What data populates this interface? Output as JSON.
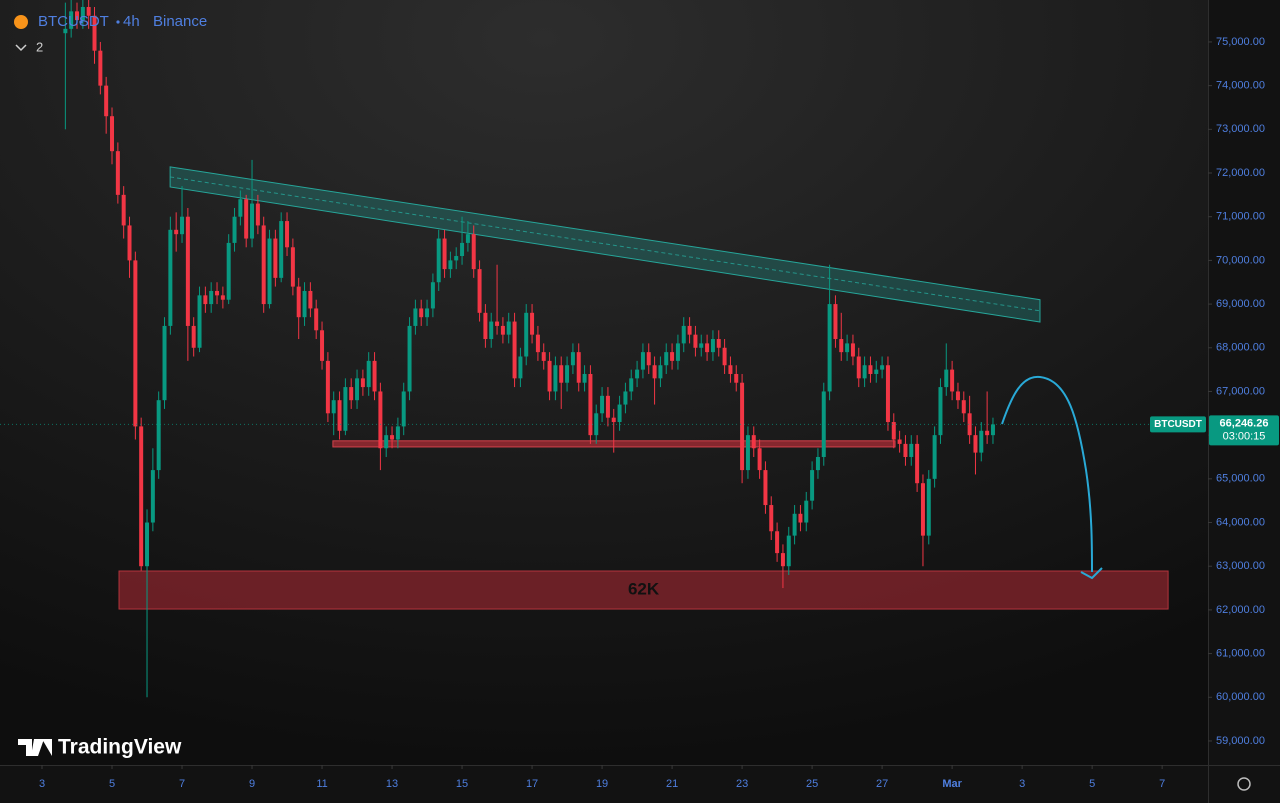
{
  "chart_data": {
    "type": "candlestick",
    "symbol": "BTCUSDT",
    "interval": "4h",
    "exchange": "Binance",
    "legend_count": 2,
    "watermark": "TradingView",
    "up_color": "#089981",
    "down_color": "#f23645",
    "xlim": [
      1.8,
      36.31
    ],
    "xticks": [
      3,
      5,
      7,
      9,
      11,
      13,
      15,
      17,
      19,
      21,
      23,
      25,
      27,
      {
        "value": 29,
        "label": "Mar"
      },
      {
        "value": 31,
        "label": "3"
      },
      {
        "value": 33,
        "label": "5"
      },
      {
        "value": 35,
        "label": "7"
      }
    ],
    "ylim": [
      58450,
      75960
    ],
    "yticks": [
      {
        "value": 59000,
        "label": "59,000.00"
      },
      {
        "value": 60000,
        "label": "60,000.00"
      },
      {
        "value": 61000,
        "label": "61,000.00"
      },
      {
        "value": 62000,
        "label": "62,000.00"
      },
      {
        "value": 63000,
        "label": "63,000.00"
      },
      {
        "value": 64000,
        "label": "64,000.00"
      },
      {
        "value": 65000,
        "label": "65,000.00"
      },
      {
        "value": 66000,
        "label": "66,000.00"
      },
      {
        "value": 67000,
        "label": "67,000.00"
      },
      {
        "value": 68000,
        "label": "68,000.00"
      },
      {
        "value": 69000,
        "label": "69,000.00"
      },
      {
        "value": 70000,
        "label": "70,000.00"
      },
      {
        "value": 71000,
        "label": "71,000.00"
      },
      {
        "value": 72000,
        "label": "72,000.00"
      },
      {
        "value": 73000,
        "label": "73,000.00"
      },
      {
        "value": 74000,
        "label": "74,000.00"
      },
      {
        "value": 75000,
        "label": "75,000.00"
      }
    ],
    "x": [
      3.667,
      3.833,
      4,
      4.167,
      4.333,
      4.5,
      4.667,
      4.833,
      5,
      5.167,
      5.333,
      5.5,
      5.667,
      5.833,
      6,
      6.167,
      6.333,
      6.5,
      6.667,
      6.833,
      7,
      7.167,
      7.333,
      7.5,
      7.667,
      7.833,
      8,
      8.167,
      8.333,
      8.5,
      8.667,
      8.833,
      9,
      9.167,
      9.333,
      9.5,
      9.667,
      9.833,
      10,
      10.167,
      10.333,
      10.5,
      10.667,
      10.833,
      11,
      11.167,
      11.333,
      11.5,
      11.667,
      11.833,
      12,
      12.167,
      12.333,
      12.5,
      12.667,
      12.833,
      13,
      13.167,
      13.333,
      13.5,
      13.667,
      13.833,
      14,
      14.167,
      14.333,
      14.5,
      14.667,
      14.833,
      15,
      15.167,
      15.333,
      15.5,
      15.667,
      15.833,
      16,
      16.167,
      16.333,
      16.5,
      16.667,
      16.833,
      17,
      17.167,
      17.333,
      17.5,
      17.667,
      17.833,
      18,
      18.167,
      18.333,
      18.5,
      18.667,
      18.833,
      19,
      19.167,
      19.333,
      19.5,
      19.667,
      19.833,
      20,
      20.167,
      20.333,
      20.5,
      20.667,
      20.833,
      21,
      21.167,
      21.333,
      21.5,
      21.667,
      21.833,
      22,
      22.167,
      22.333,
      22.5,
      22.667,
      22.833,
      23,
      23.167,
      23.333,
      23.5,
      23.667,
      23.833,
      24,
      24.167,
      24.333,
      24.5,
      24.667,
      24.833,
      25,
      25.167,
      25.333,
      25.5,
      25.667,
      25.833,
      26,
      26.167,
      26.333,
      26.5,
      26.667,
      26.833,
      27,
      27.167,
      27.333,
      27.5,
      27.667,
      27.833,
      28,
      28.167,
      28.333,
      28.5,
      28.667,
      28.833,
      29,
      29.167,
      29.333,
      29.5,
      29.667,
      29.833,
      30,
      30.167
    ],
    "open": [
      75200,
      75300,
      75700,
      75500,
      75800,
      75600,
      74800,
      74000,
      73300,
      72500,
      71500,
      70800,
      70000,
      66200,
      63000,
      64000,
      65200,
      66800,
      68500,
      70700,
      70600,
      71000,
      68500,
      68000,
      69200,
      69000,
      69300,
      69200,
      69100,
      70400,
      71000,
      71400,
      70500,
      71300,
      70800,
      69000,
      70500,
      69600,
      70900,
      70300,
      69400,
      68700,
      69300,
      68900,
      68400,
      67700,
      66500,
      66800,
      66100,
      67100,
      66800,
      67300,
      67100,
      67700,
      67000,
      65700,
      66000,
      65900,
      66200,
      67000,
      68500,
      68900,
      68700,
      68900,
      69500,
      70500,
      69800,
      70000,
      70100,
      70400,
      70600,
      69800,
      68800,
      68200,
      68600,
      68500,
      68300,
      68600,
      67300,
      67800,
      68800,
      68300,
      67900,
      67700,
      67000,
      67600,
      67200,
      67600,
      67900,
      67200,
      67400,
      66000,
      66500,
      66900,
      66400,
      66300,
      66700,
      67000,
      67300,
      67500,
      67900,
      67600,
      67300,
      67600,
      67900,
      67700,
      68100,
      68500,
      68300,
      68000,
      68100,
      67900,
      68200,
      68000,
      67600,
      67400,
      67200,
      65200,
      66000,
      65700,
      65200,
      64400,
      63800,
      63300,
      63000,
      63700,
      64200,
      64000,
      64500,
      65200,
      65500,
      67000,
      69000,
      68200,
      67900,
      68100,
      67800,
      67300,
      67600,
      67400,
      67500,
      67600,
      66300,
      65900,
      65800,
      65500,
      65800,
      64900,
      63700,
      65000,
      66000,
      67100,
      67500,
      67000,
      66800,
      66500,
      66000,
      65600,
      66100,
      66000
    ],
    "high": [
      75900,
      76000,
      75900,
      76000,
      76000,
      75800,
      75000,
      74200,
      73500,
      72700,
      71700,
      71000,
      70200,
      66400,
      64300,
      65700,
      67000,
      68700,
      71000,
      71100,
      71700,
      71200,
      68700,
      69400,
      69400,
      69500,
      69500,
      69400,
      70600,
      71200,
      71600,
      71500,
      72300,
      71500,
      71000,
      70700,
      70700,
      71100,
      71100,
      70500,
      69600,
      69500,
      69500,
      69100,
      68600,
      67900,
      67000,
      67000,
      67300,
      67300,
      67500,
      67500,
      67900,
      67900,
      67200,
      66200,
      66200,
      66400,
      67200,
      68700,
      69100,
      69100,
      69100,
      69700,
      70700,
      70700,
      70200,
      70300,
      71000,
      70900,
      70800,
      70000,
      69000,
      68800,
      69900,
      68700,
      68800,
      68800,
      68000,
      69000,
      69000,
      68500,
      68100,
      67900,
      67800,
      67800,
      67800,
      68100,
      68100,
      67600,
      67600,
      66700,
      67100,
      67100,
      66600,
      66900,
      67200,
      67500,
      67700,
      68100,
      68100,
      67800,
      67800,
      68100,
      68100,
      68300,
      68700,
      68700,
      68500,
      68300,
      68300,
      68400,
      68400,
      68200,
      67800,
      67600,
      67400,
      66200,
      66200,
      65900,
      65400,
      64600,
      64000,
      63500,
      63900,
      64400,
      64400,
      64700,
      65400,
      65700,
      67200,
      69900,
      69200,
      68800,
      68300,
      68300,
      68000,
      67800,
      67800,
      67700,
      67800,
      67800,
      66500,
      66100,
      66000,
      66000,
      66000,
      65100,
      65200,
      66200,
      67300,
      68100,
      67700,
      67200,
      67000,
      66900,
      66200,
      66300,
      67000,
      66400
    ],
    "low": [
      73000,
      75100,
      75300,
      75300,
      75300,
      74500,
      73800,
      72900,
      72200,
      71300,
      70500,
      69600,
      65900,
      62900,
      60000,
      63800,
      65000,
      66600,
      68300,
      70200,
      70400,
      67700,
      67800,
      67900,
      68800,
      68800,
      69000,
      68900,
      69000,
      70200,
      70800,
      70300,
      70300,
      70600,
      68800,
      68900,
      69400,
      69500,
      70100,
      69200,
      68200,
      68500,
      68700,
      68200,
      67500,
      66300,
      66000,
      65900,
      66000,
      66600,
      66600,
      66900,
      66900,
      66800,
      65200,
      65500,
      65700,
      65700,
      66000,
      66800,
      68300,
      68500,
      68500,
      68700,
      69300,
      69600,
      69600,
      69800,
      69900,
      70200,
      69600,
      68600,
      68000,
      68000,
      68300,
      68100,
      68100,
      67100,
      67100,
      67600,
      68100,
      67700,
      67500,
      66800,
      66800,
      66600,
      67000,
      67400,
      67000,
      67000,
      65800,
      65800,
      66300,
      66200,
      65600,
      66100,
      66500,
      66800,
      67100,
      67300,
      67400,
      66700,
      67100,
      67400,
      67500,
      67500,
      67900,
      68100,
      67800,
      67800,
      67700,
      67700,
      67800,
      67400,
      67200,
      67000,
      64900,
      65000,
      65500,
      65000,
      64200,
      63600,
      63100,
      62500,
      62800,
      63500,
      63800,
      63800,
      64300,
      65000,
      65300,
      66800,
      68000,
      67700,
      67700,
      67600,
      67100,
      67100,
      67200,
      67200,
      67300,
      66100,
      65700,
      65600,
      65300,
      65300,
      64700,
      63000,
      63500,
      64800,
      65800,
      66900,
      66800,
      66600,
      66300,
      65800,
      65100,
      65400,
      65800,
      65800
    ],
    "close": [
      75300,
      75700,
      75500,
      75800,
      75600,
      74800,
      74000,
      73300,
      72500,
      71500,
      70800,
      70000,
      66200,
      63000,
      64000,
      65200,
      66800,
      68500,
      70700,
      70600,
      71000,
      68500,
      68000,
      69200,
      69000,
      69300,
      69200,
      69100,
      70400,
      71000,
      71400,
      70500,
      71300,
      70800,
      69000,
      70500,
      69600,
      70900,
      70300,
      69400,
      68700,
      69300,
      68900,
      68400,
      67700,
      66500,
      66800,
      66100,
      67100,
      66800,
      67300,
      67100,
      67700,
      67000,
      65700,
      66000,
      65900,
      66200,
      67000,
      68500,
      68900,
      68700,
      68900,
      69500,
      70500,
      69800,
      70000,
      70100,
      70400,
      70600,
      69800,
      68800,
      68200,
      68600,
      68500,
      68300,
      68600,
      67300,
      67800,
      68800,
      68300,
      67900,
      67700,
      67000,
      67600,
      67200,
      67600,
      67900,
      67200,
      67400,
      66000,
      66500,
      66900,
      66400,
      66300,
      66700,
      67000,
      67300,
      67500,
      67900,
      67600,
      67300,
      67600,
      67900,
      67700,
      68100,
      68500,
      68300,
      68000,
      68100,
      67900,
      68200,
      68000,
      67600,
      67400,
      67200,
      65200,
      66000,
      65700,
      65200,
      64400,
      63800,
      63300,
      63000,
      63700,
      64200,
      64000,
      64500,
      65200,
      65500,
      67000,
      69000,
      68200,
      67900,
      68100,
      67800,
      67300,
      67600,
      67400,
      67500,
      67600,
      66300,
      65900,
      65800,
      65500,
      65800,
      64900,
      63700,
      65000,
      66000,
      67100,
      67500,
      67000,
      66800,
      66500,
      66000,
      65600,
      66100,
      66000,
      66246.26
    ],
    "last_price_tag": {
      "symbol": "BTCUSDT",
      "price_label": "66,246.26",
      "countdown": "03:00:15",
      "color": "#089981"
    },
    "annotations": {
      "channel": {
        "x": [
          6.66,
          31.51
        ],
        "y_upper": [
          72140,
          69100
        ],
        "y_lower": [
          71680,
          68590
        ],
        "color": "#26a69a"
      },
      "support": {
        "x": [
          11.31,
          27.37
        ],
        "y_upper": 65870,
        "y_lower": 65730,
        "color": "#a12a33"
      },
      "zone": {
        "label": "62K",
        "x": [
          5.2,
          35.17
        ],
        "y_upper": 62890,
        "y_lower": 62020,
        "color": "#7a2229"
      }
    }
  }
}
